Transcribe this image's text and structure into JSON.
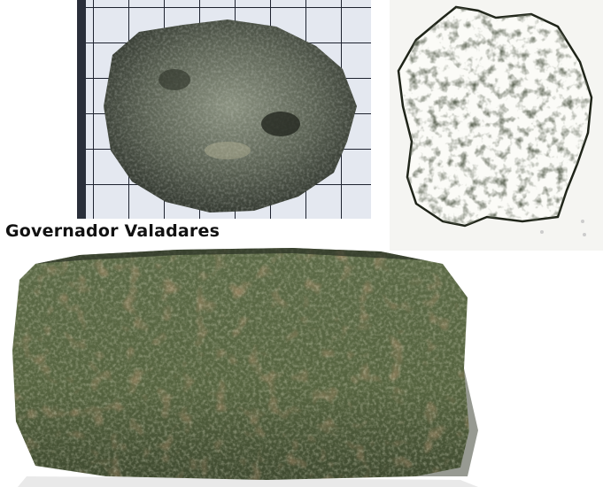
{
  "caption": "Governador Valadares",
  "colors": {
    "grid_paper": "#e6eaf2",
    "grid_line": "#2a2f3a",
    "rock_dark": "#3a3f37",
    "rock_green": "#5d6b45",
    "rust": "#7a4a2c",
    "thin_section_bg": "#f6f6f3",
    "thin_section_ink": "#1f2419"
  },
  "panels": [
    {
      "name": "specimen-fragment-on-grid-photo"
    },
    {
      "name": "thin-section-micrograph"
    },
    {
      "name": "cut-slab-photo"
    }
  ]
}
